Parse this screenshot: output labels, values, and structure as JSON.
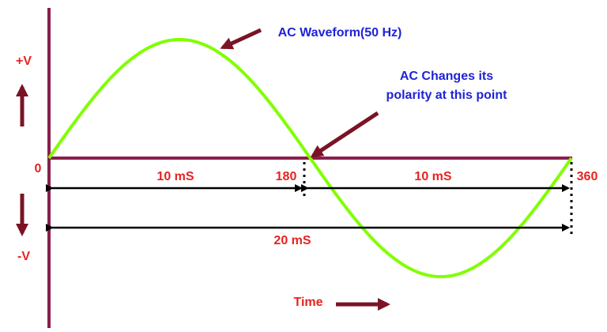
{
  "labels": {
    "plus_v": "+V",
    "minus_v": "-V",
    "zero": "0",
    "half_period": "10 mS",
    "half_period_2": "10 mS",
    "deg_180": "180",
    "deg_360": "360",
    "full_period": "20 mS",
    "time": "Time"
  },
  "annotations": {
    "waveform": "AC Waveform(50 Hz)",
    "polarity_line1": "AC Changes its",
    "polarity_line2": "polarity at this point"
  }
}
